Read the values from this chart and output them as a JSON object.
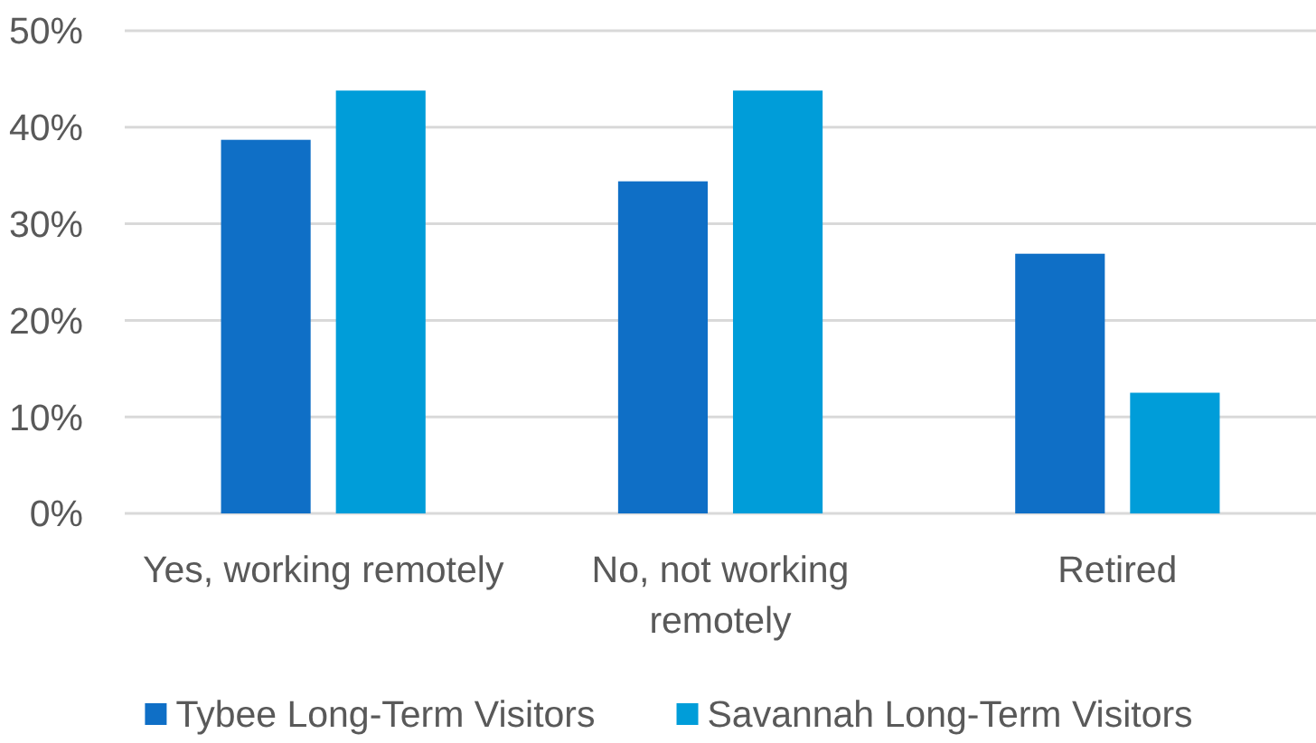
{
  "chart_data": {
    "type": "bar",
    "categories": [
      "Yes, working remotely",
      "No, not working remotely",
      "Retired"
    ],
    "series": [
      {
        "name": "Tybee Long-Term Visitors",
        "color": "#0f6fc6",
        "values": [
          38.7,
          34.4,
          26.9
        ]
      },
      {
        "name": "Savannah Long-Term Visitors",
        "color": "#009dd9",
        "values": [
          43.8,
          43.8,
          12.5
        ]
      }
    ],
    "ylim": [
      0,
      50
    ],
    "yticks": [
      {
        "value": 0,
        "label": "0%"
      },
      {
        "value": 10,
        "label": "10%"
      },
      {
        "value": 20,
        "label": "20%"
      },
      {
        "value": 30,
        "label": "30%"
      },
      {
        "value": 40,
        "label": "40%"
      },
      {
        "value": 50,
        "label": "50%"
      }
    ],
    "grid": "y",
    "legend": "bottom"
  }
}
